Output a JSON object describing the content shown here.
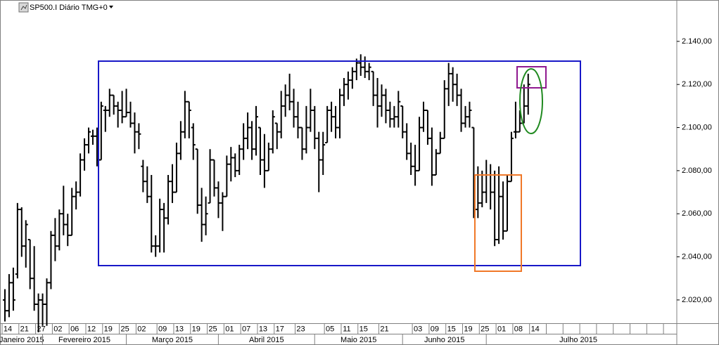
{
  "chart_data": {
    "type": "ohlc",
    "title": "SP500.I Diário TMG+0",
    "color": "#000000",
    "ylim": [
      2009.2,
      2159.2
    ],
    "yticks": [
      {
        "value": 2020,
        "label": "2.020,00"
      },
      {
        "value": 2040,
        "label": "2.040,00"
      },
      {
        "value": 2060,
        "label": "2.060,00"
      },
      {
        "value": 2080,
        "label": "2.080,00"
      },
      {
        "value": 2100,
        "label": "2.100,00"
      },
      {
        "value": 2120,
        "label": "2.120,00"
      },
      {
        "value": 2140,
        "label": "2.140,00"
      }
    ],
    "categories": [
      "14",
      null,
      null,
      null,
      "21",
      null,
      null,
      null,
      "27",
      null,
      null,
      null,
      "02",
      null,
      null,
      null,
      "06",
      null,
      null,
      null,
      "12",
      null,
      null,
      null,
      "19",
      null,
      null,
      null,
      "25",
      null,
      null,
      null,
      "02",
      null,
      null,
      null,
      null,
      "09",
      null,
      null,
      null,
      "13",
      null,
      null,
      null,
      "19",
      null,
      null,
      null,
      "25",
      null,
      null,
      null,
      "01",
      null,
      null,
      null,
      "07",
      null,
      null,
      null,
      "13",
      null,
      null,
      null,
      "17",
      null,
      null,
      null,
      null,
      "23",
      null,
      null,
      null,
      null,
      null,
      null,
      "05",
      null,
      null,
      null,
      "11",
      null,
      null,
      null,
      "15",
      null,
      null,
      null,
      null,
      "21",
      null,
      null,
      null,
      null,
      null,
      null,
      null,
      "03",
      null,
      null,
      null,
      "09",
      null,
      null,
      null,
      "15",
      null,
      null,
      null,
      "19",
      null,
      null,
      null,
      "25",
      null,
      null,
      null,
      "01",
      null,
      null,
      null,
      "08",
      null,
      null,
      null,
      "14",
      null,
      null,
      null,
      null,
      null,
      null,
      null,
      null,
      null,
      null,
      null,
      null,
      null,
      null,
      null,
      null,
      null,
      null,
      null,
      null,
      null,
      null,
      null,
      null,
      null,
      null,
      null,
      null,
      null,
      null,
      null,
      null,
      null,
      null
    ],
    "months": [
      {
        "label": "Janeiro 2015",
        "start": 0
      },
      {
        "label": "Fevereiro 2015",
        "start": 10
      },
      {
        "label": "Março 2015",
        "start": 30
      },
      {
        "label": "Abril 2015",
        "start": 52
      },
      {
        "label": "Maio 2015",
        "start": 75
      },
      {
        "label": "Junho 2015",
        "start": 96
      },
      {
        "label": "Julho 2015",
        "start": 116
      }
    ],
    "ohlc": [
      [
        2020,
        2025,
        2010,
        2015
      ],
      [
        2015,
        2032,
        2012,
        2028
      ],
      [
        2028,
        2035,
        2015,
        2020
      ],
      [
        2032,
        2065,
        2030,
        2062
      ],
      [
        2062,
        2063,
        2040,
        2045
      ],
      [
        2045,
        2057,
        2035,
        2055
      ],
      [
        2048,
        2048,
        2025,
        2030
      ],
      [
        2030,
        2045,
        2015,
        2018
      ],
      [
        2018,
        2023,
        2005,
        2020
      ],
      [
        2020,
        2023,
        2008,
        2018
      ],
      [
        2018,
        2030,
        2008,
        2028
      ],
      [
        2028,
        2052,
        2025,
        2050
      ],
      [
        2050,
        2058,
        2038,
        2045
      ],
      [
        2045,
        2062,
        2043,
        2060
      ],
      [
        2060,
        2073,
        2050,
        2055
      ],
      [
        2055,
        2060,
        2045,
        2050
      ],
      [
        2050,
        2072,
        2050,
        2068
      ],
      [
        2068,
        2075,
        2062,
        2070
      ],
      [
        2070,
        2088,
        2068,
        2085
      ],
      [
        2085,
        2095,
        2080,
        2092
      ],
      [
        2092,
        2100,
        2088,
        2098
      ],
      [
        2096,
        2099,
        2092,
        2096
      ],
      [
        2096,
        2100,
        2082,
        2085
      ],
      [
        2085,
        2112,
        2085,
        2110
      ],
      [
        2108,
        2110,
        2098,
        2108
      ],
      [
        2108,
        2118,
        2105,
        2115
      ],
      [
        2115,
        2115,
        2106,
        2110
      ],
      [
        2110,
        2112,
        2100,
        2108
      ],
      [
        2108,
        2117,
        2102,
        2105
      ],
      [
        2105,
        2118,
        2105,
        2107
      ],
      [
        2107,
        2112,
        2100,
        2102
      ],
      [
        2102,
        2107,
        2088,
        2098
      ],
      [
        2098,
        2102,
        2090,
        2097
      ],
      [
        2082,
        2085,
        2070,
        2075
      ],
      [
        2075,
        2082,
        2065,
        2068
      ],
      [
        2068,
        2078,
        2042,
        2045
      ],
      [
        2045,
        2050,
        2040,
        2045
      ],
      [
        2045,
        2067,
        2042,
        2062
      ],
      [
        2062,
        2065,
        2042,
        2058
      ],
      [
        2058,
        2078,
        2055,
        2075
      ],
      [
        2075,
        2083,
        2065,
        2070
      ],
      [
        2070,
        2093,
        2070,
        2088
      ],
      [
        2088,
        2103,
        2085,
        2098
      ],
      [
        2098,
        2117,
        2095,
        2112
      ],
      [
        2112,
        2112,
        2095,
        2108
      ],
      [
        2100,
        2102,
        2085,
        2092
      ],
      [
        2090,
        2090,
        2060,
        2064
      ],
      [
        2064,
        2072,
        2047,
        2055
      ],
      [
        2055,
        2068,
        2050,
        2060
      ],
      [
        2065,
        2090,
        2065,
        2085
      ],
      [
        2085,
        2085,
        2068,
        2072
      ],
      [
        2072,
        2075,
        2058,
        2065
      ],
      [
        2065,
        2070,
        2052,
        2068
      ],
      [
        2068,
        2087,
        2068,
        2083
      ],
      [
        2083,
        2091,
        2075,
        2086
      ],
      [
        2086,
        2088,
        2077,
        2080
      ],
      [
        2080,
        2092,
        2078,
        2090
      ],
      [
        2090,
        2102,
        2085,
        2095
      ],
      [
        2095,
        2107,
        2090,
        2100
      ],
      [
        2100,
        2103,
        2085,
        2090
      ],
      [
        2090,
        2110,
        2087,
        2105
      ],
      [
        2100,
        2100,
        2078,
        2085
      ],
      [
        2085,
        2097,
        2072,
        2080
      ],
      [
        2080,
        2093,
        2080,
        2090
      ],
      [
        2090,
        2108,
        2088,
        2105
      ],
      [
        2102,
        2102,
        2090,
        2098
      ],
      [
        2098,
        2117,
        2095,
        2110
      ],
      [
        2110,
        2120,
        2105,
        2115
      ],
      [
        2115,
        2125,
        2108,
        2112
      ],
      [
        2112,
        2118,
        2100,
        2105
      ],
      [
        2105,
        2112,
        2095,
        2100
      ],
      [
        2100,
        2100,
        2085,
        2090
      ],
      [
        2090,
        2110,
        2088,
        2100
      ],
      [
        2100,
        2118,
        2098,
        2108
      ],
      [
        2108,
        2110,
        2090,
        2095
      ],
      [
        2095,
        2098,
        2070,
        2085
      ],
      [
        2085,
        2098,
        2078,
        2092
      ],
      [
        2093,
        2110,
        2093,
        2108
      ],
      [
        2108,
        2112,
        2098,
        2105
      ],
      [
        2105,
        2110,
        2095,
        2100
      ],
      [
        2100,
        2118,
        2095,
        2115
      ],
      [
        2115,
        2123,
        2110,
        2120
      ],
      [
        2120,
        2126,
        2113,
        2122
      ],
      [
        2122,
        2128,
        2118,
        2126
      ],
      [
        2126,
        2132,
        2122,
        2130
      ],
      [
        2130,
        2134,
        2124,
        2128
      ],
      [
        2128,
        2133,
        2123,
        2126
      ],
      [
        2126,
        2130,
        2122,
        2128
      ],
      [
        2126,
        2126,
        2110,
        2115
      ],
      [
        2115,
        2123,
        2100,
        2110
      ],
      [
        2110,
        2120,
        2105,
        2115
      ],
      [
        2115,
        2118,
        2102,
        2108
      ],
      [
        2108,
        2112,
        2100,
        2104
      ],
      [
        2104,
        2110,
        2100,
        2105
      ],
      [
        2105,
        2117,
        2100,
        2112
      ],
      [
        2110,
        2110,
        2095,
        2098
      ],
      [
        2098,
        2102,
        2085,
        2088
      ],
      [
        2088,
        2093,
        2078,
        2082
      ],
      [
        2082,
        2092,
        2073,
        2080
      ],
      [
        2080,
        2105,
        2080,
        2100
      ],
      [
        2100,
        2112,
        2098,
        2108
      ],
      [
        2108,
        2108,
        2092,
        2095
      ],
      [
        2095,
        2100,
        2073,
        2078
      ],
      [
        2078,
        2090,
        2078,
        2088
      ],
      [
        2088,
        2098,
        2088,
        2095
      ],
      [
        2095,
        2122,
        2095,
        2118
      ],
      [
        2118,
        2130,
        2110,
        2125
      ],
      [
        2125,
        2128,
        2112,
        2120
      ],
      [
        2120,
        2125,
        2110,
        2115
      ],
      [
        2115,
        2118,
        2098,
        2102
      ],
      [
        2102,
        2110,
        2100,
        2105
      ],
      [
        2105,
        2112,
        2100,
        2108
      ],
      [
        2100,
        2100,
        2058,
        2062
      ],
      [
        2062,
        2082,
        2058,
        2065
      ],
      [
        2065,
        2080,
        2063,
        2070
      ],
      [
        2070,
        2085,
        2065,
        2078
      ],
      [
        2078,
        2083,
        2062,
        2070
      ],
      [
        2070,
        2080,
        2045,
        2048
      ],
      [
        2048,
        2082,
        2046,
        2068
      ],
      [
        2068,
        2075,
        2048,
        2052
      ],
      [
        2052,
        2078,
        2052,
        2075
      ],
      [
        2075,
        2098,
        2075,
        2095
      ],
      [
        2098,
        2112,
        2095,
        2098
      ],
      [
        2098,
        2108,
        2098,
        2102
      ],
      [
        2102,
        2120,
        2102,
        2110
      ],
      [
        2110,
        2125,
        2106,
        2120
      ],
      null,
      null,
      null,
      null,
      null,
      null,
      null,
      null,
      null,
      null,
      null,
      null,
      null,
      null,
      null,
      null,
      null,
      null,
      null,
      null,
      null,
      null,
      null,
      null,
      null,
      null,
      null,
      null,
      null,
      null,
      null,
      null,
      null,
      null,
      null
    ]
  }
}
